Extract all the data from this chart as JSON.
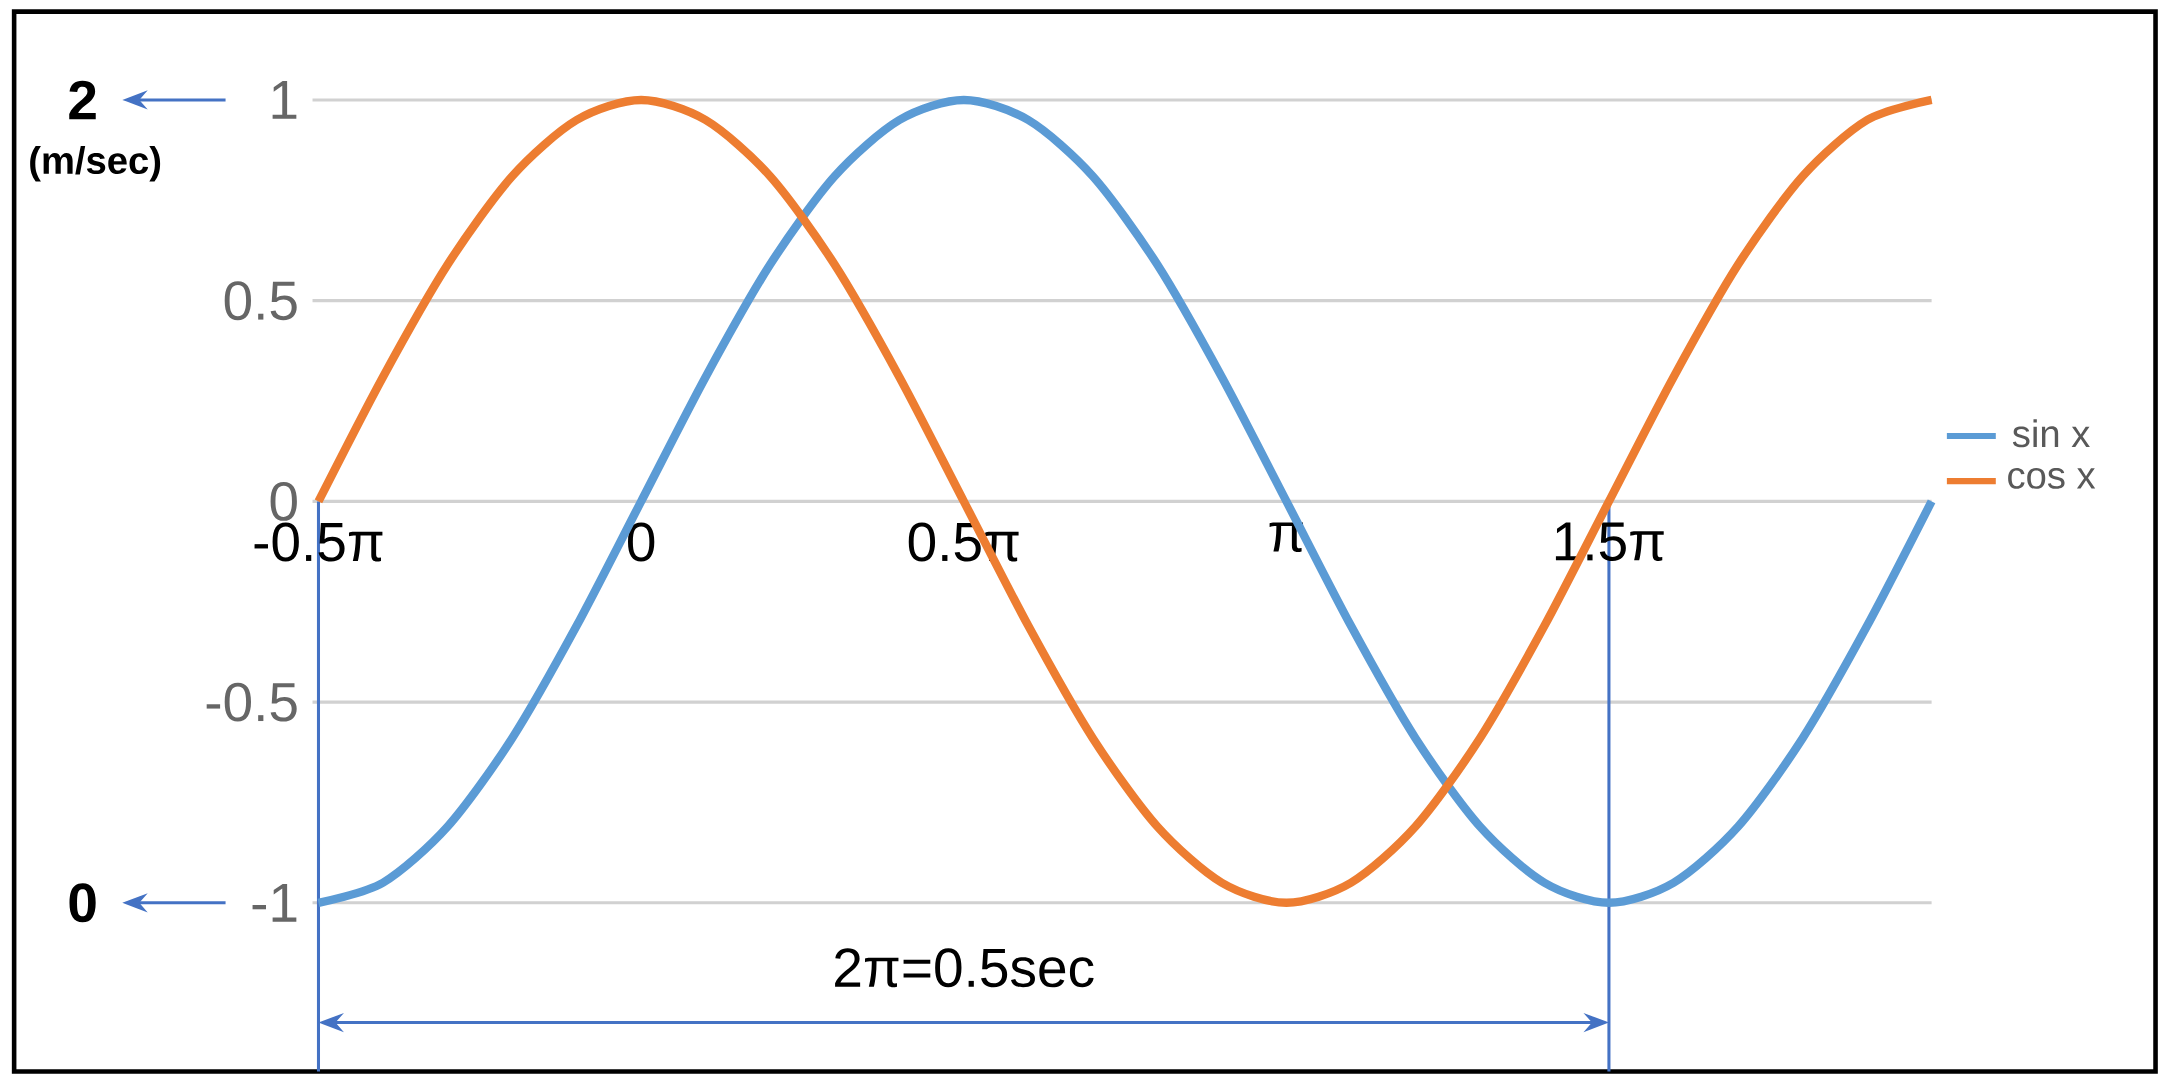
{
  "chart_data": {
    "type": "line",
    "x": [
      -1.571,
      -1.257,
      -0.942,
      -0.628,
      -0.314,
      0,
      0.314,
      0.628,
      0.942,
      1.257,
      1.571,
      1.885,
      2.199,
      2.513,
      2.827,
      3.142,
      3.456,
      3.77,
      4.084,
      4.398,
      4.712,
      5.027,
      5.341,
      5.655,
      5.969,
      6.283
    ],
    "series": [
      {
        "name": "sin x",
        "color": "#5b9bd5",
        "values": [
          -1,
          -0.95,
          -0.81,
          -0.59,
          -0.31,
          0,
          0.31,
          0.59,
          0.81,
          0.95,
          1,
          0.95,
          0.81,
          0.59,
          0.31,
          0,
          -0.31,
          -0.59,
          -0.81,
          -0.95,
          -1,
          -0.95,
          -0.81,
          -0.59,
          -0.31,
          0
        ]
      },
      {
        "name": "cos x",
        "color": "#ed7d31",
        "values": [
          0,
          0.31,
          0.59,
          0.81,
          0.95,
          1,
          0.95,
          0.81,
          0.59,
          0.31,
          0,
          -0.31,
          -0.59,
          -0.81,
          -0.95,
          -1,
          -0.95,
          -0.81,
          -0.59,
          -0.31,
          0,
          0.31,
          0.59,
          0.81,
          0.95,
          1
        ]
      }
    ],
    "xlim": [
      -1.6,
      6.283
    ],
    "xticks": [
      {
        "value": -1.571,
        "label": "-0.5π"
      },
      0,
      {
        "value": 1.571,
        "label": "0.5π"
      },
      {
        "value": 3.142,
        "label": "π"
      },
      {
        "value": 4.712,
        "label": "1.5π"
      }
    ],
    "ylim": [
      -1.42,
      1.22
    ],
    "yticks": [
      -1,
      -0.5,
      0,
      0.5,
      1
    ],
    "y2lim": [
      -0.42,
      2.22
    ],
    "y2ticks": [
      0,
      2
    ],
    "y2label": "(m/sec)",
    "ref_lines": [
      {
        "axis": "x",
        "value": -1.571,
        "color": "#4472c4"
      },
      {
        "axis": "x",
        "value": 4.712,
        "color": "#4472c4"
      }
    ],
    "annotations": [
      "2π=0.5sec"
    ],
    "grid": "y",
    "legend": "right",
    "line_style": "solid",
    "marker": "none"
  }
}
